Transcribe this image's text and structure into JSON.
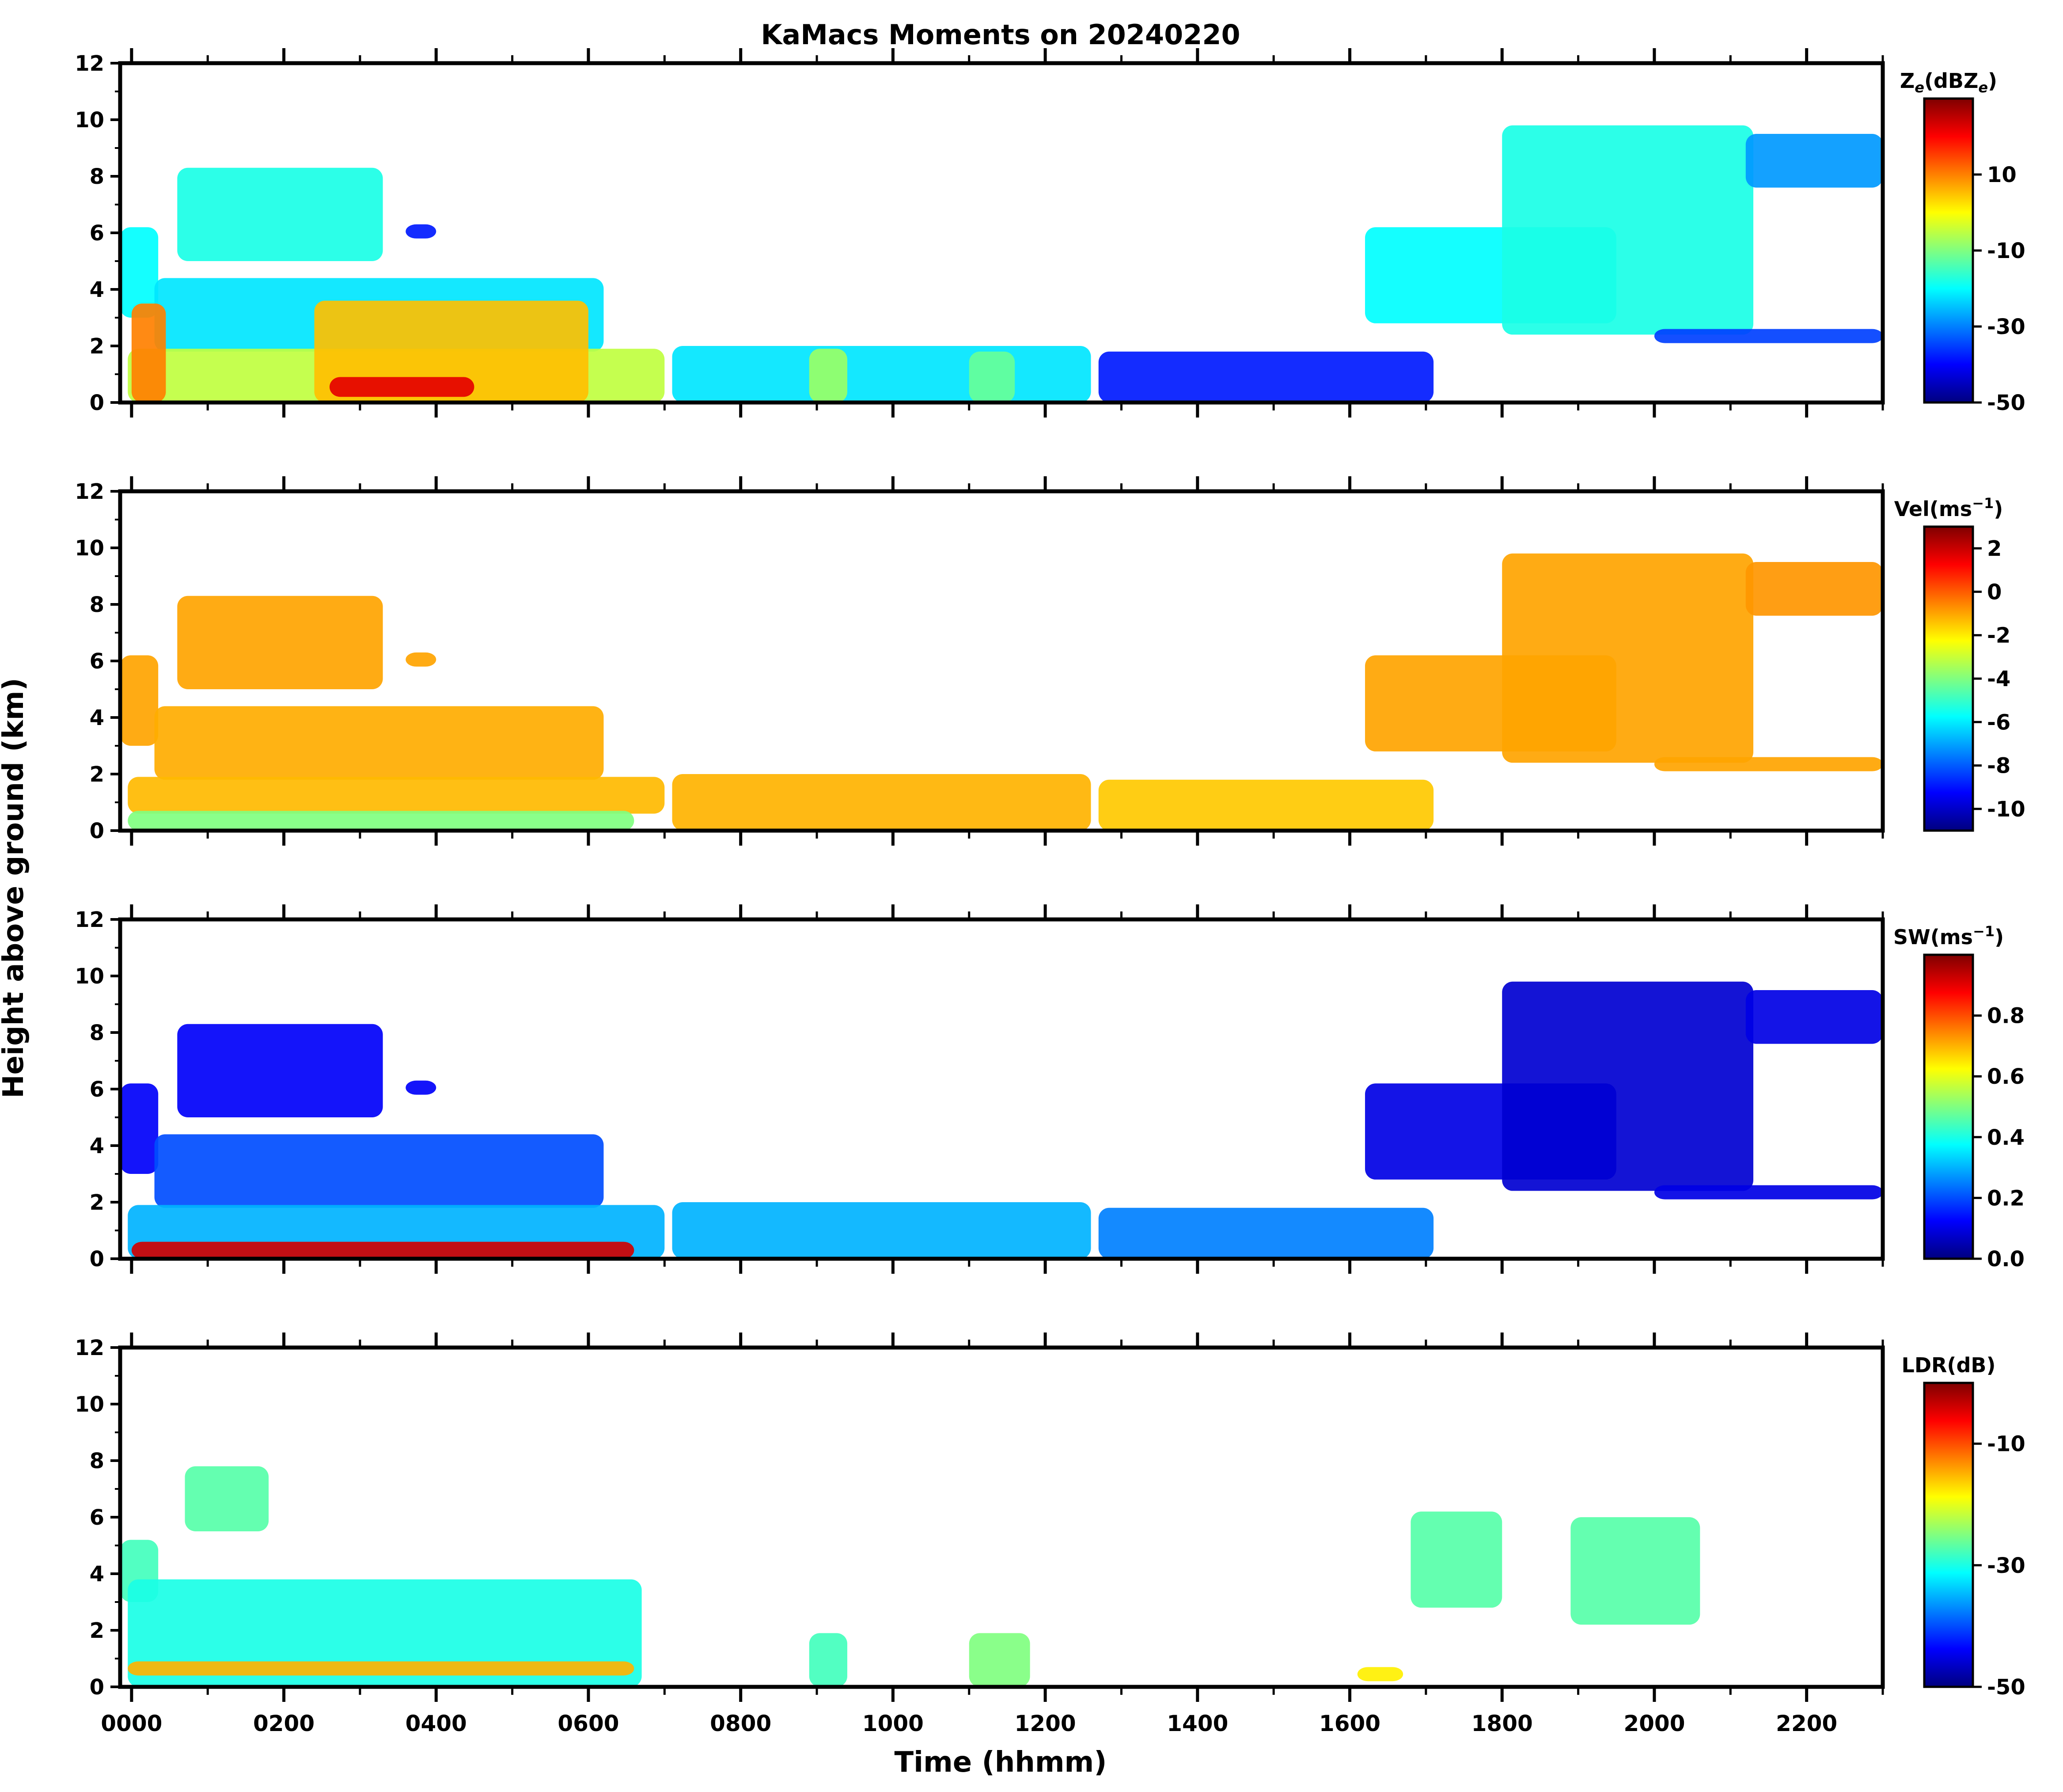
{
  "chart_data": {
    "type": "heatmap",
    "title": "KaMacs Moments on 20240220",
    "xlabel": "Time (hhmm)",
    "ylabel": "Height above ground (km)",
    "xlim": [
      -0.15,
      23.0
    ],
    "ylim": [
      0,
      12
    ],
    "x_major_ticks": [
      0,
      2,
      4,
      6,
      8,
      10,
      12,
      14,
      16,
      18,
      20,
      22
    ],
    "x_tick_labels": [
      "0000",
      "0200",
      "0400",
      "0600",
      "0800",
      "1000",
      "1200",
      "1400",
      "1600",
      "1800",
      "2000",
      "2200"
    ],
    "y_ticks": [
      0,
      2,
      4,
      6,
      8,
      10,
      12
    ],
    "y_tick_labels": [
      "0",
      "2",
      "4",
      "6",
      "8",
      "10",
      "12"
    ],
    "colormap": [
      "#00007f",
      "#0000ff",
      "#0080ff",
      "#00ffff",
      "#80ff80",
      "#ffff00",
      "#ff8000",
      "#ff0000",
      "#7f0000"
    ],
    "panels": [
      {
        "id": "ze",
        "colorbar_label": "Ze(dBZe)",
        "label_base": "Z",
        "label_sub1": "e",
        "label_mid": "(dBZ",
        "label_sub2": "e",
        "label_end": ")",
        "vmin": -50,
        "vmax": 30,
        "ticks": [
          10,
          -10,
          -30,
          -50
        ],
        "tick_labels": [
          "10",
          "-10",
          "-30",
          "-50"
        ],
        "regions": [
          {
            "x": [
              -0.15,
              0.35
            ],
            "y": [
              3.0,
              6.2
            ],
            "value": -20
          },
          {
            "x": [
              0.6,
              3.3
            ],
            "y": [
              5.0,
              8.3
            ],
            "value": -18
          },
          {
            "x": [
              3.6,
              4.0
            ],
            "y": [
              5.8,
              6.3
            ],
            "value": -38
          },
          {
            "x": [
              0.3,
              6.2
            ],
            "y": [
              1.8,
              4.4
            ],
            "value": -22
          },
          {
            "x": [
              -0.05,
              7.0
            ],
            "y": [
              0.0,
              1.9
            ],
            "value": -5
          },
          {
            "x": [
              0.0,
              0.45
            ],
            "y": [
              0.0,
              3.5
            ],
            "value": 10
          },
          {
            "x": [
              2.4,
              6.0
            ],
            "y": [
              0.0,
              3.6
            ],
            "value": 5
          },
          {
            "x": [
              2.6,
              4.5
            ],
            "y": [
              0.2,
              0.9
            ],
            "value": 22
          },
          {
            "x": [
              7.1,
              12.6
            ],
            "y": [
              0.0,
              2.0
            ],
            "value": -22
          },
          {
            "x": [
              8.9,
              9.4
            ],
            "y": [
              0.0,
              1.9
            ],
            "value": -8
          },
          {
            "x": [
              11.0,
              11.6
            ],
            "y": [
              0.0,
              1.8
            ],
            "value": -12
          },
          {
            "x": [
              12.7,
              17.1
            ],
            "y": [
              0.0,
              1.8
            ],
            "value": -38
          },
          {
            "x": [
              16.2,
              19.5
            ],
            "y": [
              2.8,
              6.2
            ],
            "value": -20
          },
          {
            "x": [
              18.0,
              21.3
            ],
            "y": [
              2.4,
              9.8
            ],
            "value": -18
          },
          {
            "x": [
              21.2,
              23.0
            ],
            "y": [
              7.6,
              9.5
            ],
            "value": -28
          },
          {
            "x": [
              20.0,
              23.0
            ],
            "y": [
              2.1,
              2.6
            ],
            "value": -35
          }
        ]
      },
      {
        "id": "vel",
        "colorbar_label": "Vel(ms-1)",
        "label_base": "Vel(ms",
        "label_sup": "−1",
        "label_end": ")",
        "vmin": -11,
        "vmax": 3,
        "ticks": [
          2,
          0,
          -2,
          -4,
          -6,
          -8,
          -10
        ],
        "tick_labels": [
          "2",
          "0",
          "-2",
          "-4",
          "-6",
          "-8",
          "-10"
        ],
        "regions": [
          {
            "x": [
              -0.15,
              0.35
            ],
            "y": [
              3.0,
              6.2
            ],
            "value": -1.0
          },
          {
            "x": [
              0.6,
              3.3
            ],
            "y": [
              5.0,
              8.3
            ],
            "value": -1.0
          },
          {
            "x": [
              3.6,
              4.0
            ],
            "y": [
              5.8,
              6.3
            ],
            "value": -1.0
          },
          {
            "x": [
              0.3,
              6.2
            ],
            "y": [
              1.8,
              4.4
            ],
            "value": -1.1
          },
          {
            "x": [
              -0.05,
              7.0
            ],
            "y": [
              0.6,
              1.9
            ],
            "value": -1.3
          },
          {
            "x": [
              -0.05,
              6.6
            ],
            "y": [
              0.0,
              0.7
            ],
            "value": -4.0
          },
          {
            "x": [
              7.1,
              12.6
            ],
            "y": [
              0.0,
              2.0
            ],
            "value": -1.2
          },
          {
            "x": [
              12.7,
              17.1
            ],
            "y": [
              0.0,
              1.8
            ],
            "value": -1.5
          },
          {
            "x": [
              16.2,
              19.5
            ],
            "y": [
              2.8,
              6.2
            ],
            "value": -1.0
          },
          {
            "x": [
              18.0,
              21.3
            ],
            "y": [
              2.4,
              9.8
            ],
            "value": -1.0
          },
          {
            "x": [
              21.2,
              23.0
            ],
            "y": [
              7.6,
              9.5
            ],
            "value": -0.8
          },
          {
            "x": [
              20.0,
              23.0
            ],
            "y": [
              2.1,
              2.6
            ],
            "value": -1.0
          }
        ]
      },
      {
        "id": "sw",
        "colorbar_label": "SW(ms-1)",
        "label_base": "SW(ms",
        "label_sup": "−1",
        "label_end": ")",
        "vmin": 0.0,
        "vmax": 1.0,
        "ticks": [
          0.8,
          0.6,
          0.4,
          0.2,
          0.0
        ],
        "tick_labels": [
          "0.8",
          "0.6",
          "0.4",
          "0.2",
          "0.0"
        ],
        "regions": [
          {
            "x": [
              -0.15,
              0.35
            ],
            "y": [
              3.0,
              6.2
            ],
            "value": 0.12
          },
          {
            "x": [
              0.6,
              3.3
            ],
            "y": [
              5.0,
              8.3
            ],
            "value": 0.12
          },
          {
            "x": [
              3.6,
              4.0
            ],
            "y": [
              5.8,
              6.3
            ],
            "value": 0.12
          },
          {
            "x": [
              0.3,
              6.2
            ],
            "y": [
              1.8,
              4.4
            ],
            "value": 0.2
          },
          {
            "x": [
              -0.05,
              7.0
            ],
            "y": [
              0.0,
              1.9
            ],
            "value": 0.3
          },
          {
            "x": [
              0.0,
              6.6
            ],
            "y": [
              0.0,
              0.6
            ],
            "value": 0.92
          },
          {
            "x": [
              7.1,
              12.6
            ],
            "y": [
              0.0,
              2.0
            ],
            "value": 0.3
          },
          {
            "x": [
              12.7,
              17.1
            ],
            "y": [
              0.0,
              1.8
            ],
            "value": 0.25
          },
          {
            "x": [
              16.2,
              19.5
            ],
            "y": [
              2.8,
              6.2
            ],
            "value": 0.1
          },
          {
            "x": [
              18.0,
              21.3
            ],
            "y": [
              2.4,
              9.8
            ],
            "value": 0.08
          },
          {
            "x": [
              21.2,
              23.0
            ],
            "y": [
              7.6,
              9.5
            ],
            "value": 0.1
          },
          {
            "x": [
              20.0,
              23.0
            ],
            "y": [
              2.1,
              2.6
            ],
            "value": 0.1
          }
        ]
      },
      {
        "id": "ldr",
        "colorbar_label": "LDR(dB)",
        "label_base": "LDR(dB)",
        "vmin": -50,
        "vmax": 0,
        "ticks": [
          -10,
          -30,
          -50
        ],
        "tick_labels": [
          "-10",
          "-30",
          "-50"
        ],
        "regions": [
          {
            "x": [
              -0.15,
              0.35
            ],
            "y": [
              3.0,
              5.2
            ],
            "value": -28
          },
          {
            "x": [
              0.7,
              1.8
            ],
            "y": [
              5.5,
              7.8
            ],
            "value": -27
          },
          {
            "x": [
              -0.05,
              6.7
            ],
            "y": [
              0.0,
              3.8
            ],
            "value": -30
          },
          {
            "x": [
              -0.05,
              6.6
            ],
            "y": [
              0.4,
              0.9
            ],
            "value": -15
          },
          {
            "x": [
              8.9,
              9.4
            ],
            "y": [
              0.0,
              1.9
            ],
            "value": -28
          },
          {
            "x": [
              11.0,
              11.8
            ],
            "y": [
              0.0,
              1.9
            ],
            "value": -25
          },
          {
            "x": [
              16.1,
              16.7
            ],
            "y": [
              0.2,
              0.7
            ],
            "value": -18
          },
          {
            "x": [
              16.8,
              18.0
            ],
            "y": [
              2.8,
              6.2
            ],
            "value": -27
          },
          {
            "x": [
              18.9,
              20.6
            ],
            "y": [
              2.2,
              6.0
            ],
            "value": -27
          }
        ]
      }
    ]
  }
}
